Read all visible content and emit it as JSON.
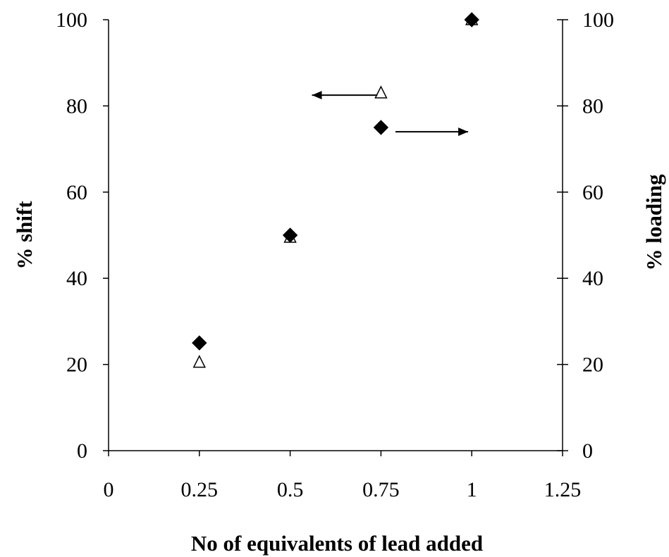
{
  "chart_data": {
    "type": "scatter",
    "title": "",
    "xlabel": "No of equivalents of lead added",
    "ylabel": "% shift",
    "y2label": "% loading",
    "xlim": [
      0,
      1.25
    ],
    "ylim": [
      0,
      100
    ],
    "y2lim": [
      0,
      100
    ],
    "x_ticks": [
      "0",
      "0.25",
      "0.5",
      "0.75",
      "1",
      "1.25"
    ],
    "y_ticks": [
      "0",
      "20",
      "40",
      "60",
      "80",
      "100"
    ],
    "y2_ticks": [
      "0",
      "20",
      "40",
      "60",
      "80",
      "100"
    ],
    "grid": false,
    "legend": "none",
    "series": [
      {
        "axis": "left",
        "marker": "open-triangle",
        "color": "#000000",
        "x": [
          0.25,
          0.5,
          0.75,
          1.0
        ],
        "y": [
          20.5,
          49.5,
          83,
          100
        ]
      },
      {
        "axis": "right",
        "marker": "filled-diamond",
        "color": "#000000",
        "x": [
          0.25,
          0.5,
          0.75,
          1.0
        ],
        "y": [
          25,
          50,
          75,
          100
        ]
      }
    ],
    "annotations": [
      {
        "type": "arrow",
        "direction": "left",
        "points_to_axis": "left",
        "x_from": 0.74,
        "x_to": 0.56,
        "y": 82.5
      },
      {
        "type": "arrow",
        "direction": "right",
        "points_to_axis": "right",
        "x_from": 0.79,
        "x_to": 0.99,
        "y": 74
      }
    ]
  }
}
